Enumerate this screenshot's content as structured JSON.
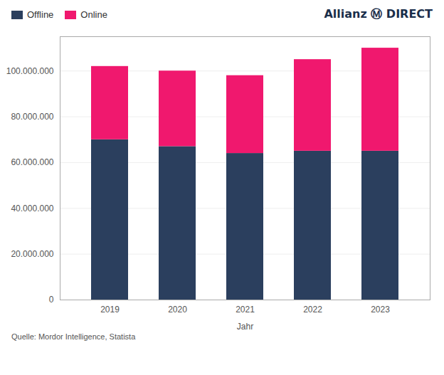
{
  "chart_data": {
    "type": "bar",
    "stacked": true,
    "categories": [
      "2019",
      "2020",
      "2021",
      "2022",
      "2023"
    ],
    "series": [
      {
        "name": "Offline",
        "color": "#2b3f5e",
        "values": [
          70000000,
          67000000,
          64000000,
          65000000,
          65000000
        ]
      },
      {
        "name": "Online",
        "color": "#f0186e",
        "values": [
          32000000,
          33000000,
          34000000,
          40000000,
          45000000
        ]
      }
    ],
    "xlabel": "Jahr",
    "ylim": [
      0,
      115000000
    ],
    "yticks": [
      0,
      {
        "value": 20000000,
        "label": "20.000.000"
      },
      {
        "value": 40000000,
        "label": "40.000.000"
      },
      {
        "value": 60000000,
        "label": "60.000.000"
      },
      {
        "value": 80000000,
        "label": "80.000.000"
      },
      {
        "value": 100000000,
        "label": "100.000.000"
      }
    ],
    "grid": true,
    "legend": "upper left",
    "annotations": [
      "Allianz Ⓜ DIRECT",
      "Quelle: Mordor Intelligence, Statista"
    ]
  }
}
